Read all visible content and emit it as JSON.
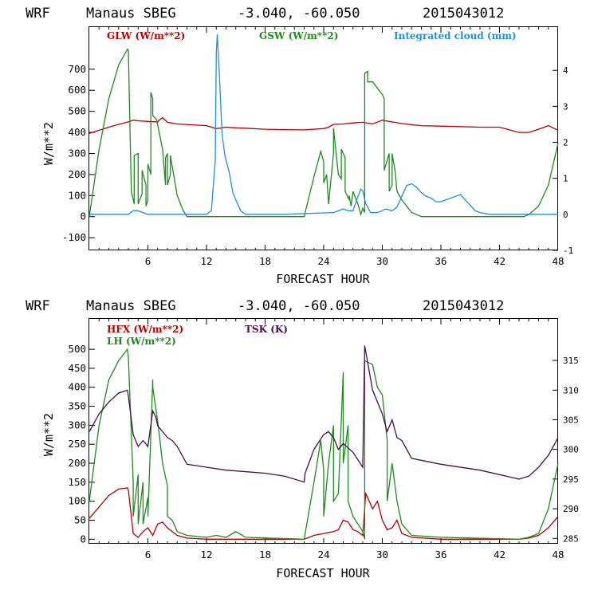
{
  "chart_data": [
    {
      "type": "line",
      "header": {
        "model": "WRF",
        "station": "Manaus SBEG",
        "coords": "-3.040, -60.050",
        "date": "2015043012"
      },
      "xlabel": "FORECAST HOUR",
      "ylabel": "W/m**2",
      "xlim": [
        0,
        48
      ],
      "ylim": [
        -160,
        900
      ],
      "xticks": [
        6,
        12,
        18,
        24,
        30,
        36,
        42,
        48
      ],
      "yticks": [
        -100,
        0,
        100,
        200,
        300,
        400,
        500,
        600,
        700
      ],
      "y2lim": [
        -1,
        5.2
      ],
      "y2ticks": [
        -1,
        0,
        1,
        2,
        3,
        4
      ],
      "legend": [
        {
          "label": "GLW (W/m**2)",
          "color": "#b40000"
        },
        {
          "label": "GSW (W/m**2)",
          "color": "#1e8a1e"
        },
        {
          "label": "Integrated cloud (mm)",
          "color": "#1f8fd8"
        }
      ],
      "series": [
        {
          "name": "GLW (W/m**2)",
          "color": "#b40000",
          "axis": "left",
          "x": [
            0,
            1,
            2,
            3,
            4,
            4.5,
            5,
            6,
            7,
            7.2,
            7.5,
            8,
            9,
            12,
            13,
            14,
            15,
            16,
            18,
            20,
            22,
            24,
            24.5,
            25,
            26,
            27,
            28,
            29,
            30,
            31,
            32,
            34,
            36,
            40,
            42,
            44,
            45,
            46,
            47,
            48
          ],
          "y": [
            395,
            410,
            425,
            438,
            450,
            458,
            455,
            452,
            450,
            460,
            470,
            448,
            440,
            432,
            418,
            425,
            422,
            420,
            415,
            413,
            412,
            418,
            425,
            438,
            440,
            445,
            448,
            440,
            458,
            450,
            442,
            432,
            430,
            425,
            425,
            400,
            400,
            415,
            432,
            410
          ]
        },
        {
          "name": "GSW (W/m**2)",
          "color": "#1e8a1e",
          "axis": "left",
          "x": [
            0,
            1,
            2,
            3,
            3.9,
            4,
            4.3,
            4.6,
            4.6,
            5,
            5,
            5.4,
            5.4,
            5.8,
            5.8,
            6,
            6,
            6.3,
            6.3,
            6.5,
            6.5,
            6.9,
            7.5,
            7.8,
            7.8,
            8,
            8,
            8.3,
            8.3,
            9,
            9.6,
            10,
            22,
            23,
            23.7,
            24,
            24,
            24.3,
            24.5,
            25,
            25,
            25.5,
            25.8,
            25.8,
            26.2,
            26.2,
            26.6,
            26.6,
            26.8,
            27,
            27.5,
            27.8,
            28,
            28.2,
            28.2,
            28.5,
            28.5,
            29,
            30,
            30.2,
            30.2,
            30.7,
            30.7,
            31,
            31,
            31.3,
            31.5,
            32,
            33,
            34,
            44.5,
            45,
            46,
            47,
            48
          ],
          "y": [
            0,
            320,
            560,
            720,
            795,
            790,
            120,
            60,
            290,
            300,
            60,
            110,
            220,
            150,
            50,
            80,
            250,
            200,
            590,
            560,
            480,
            460,
            320,
            150,
            280,
            300,
            150,
            200,
            290,
            100,
            30,
            0,
            0,
            190,
            310,
            260,
            160,
            200,
            60,
            300,
            420,
            200,
            180,
            320,
            280,
            120,
            80,
            100,
            50,
            120,
            60,
            10,
            40,
            20,
            680,
            690,
            640,
            640,
            580,
            560,
            220,
            300,
            120,
            150,
            300,
            220,
            120,
            80,
            20,
            0,
            0,
            10,
            50,
            150,
            350
          ]
        },
        {
          "name": "Integrated cloud (mm)",
          "color": "#1f8fd8",
          "axis": "right",
          "x": [
            0,
            4,
            4.5,
            5,
            5.5,
            6,
            12,
            12.5,
            12.9,
            13,
            13.1,
            13.3,
            13.6,
            13.9,
            14.3,
            14.7,
            15,
            15.5,
            16,
            17,
            20,
            25,
            26,
            26.5,
            27,
            27.5,
            27.8,
            28,
            28.3,
            28.8,
            29.5,
            30,
            30.3,
            31,
            31.5,
            32,
            32.5,
            33,
            33.5,
            34,
            34.5,
            35,
            35.5,
            36,
            37,
            37.5,
            38,
            38.5,
            39,
            39.5,
            40,
            41,
            44,
            48
          ],
          "y": [
            0,
            0,
            0.1,
            0.1,
            0.05,
            0,
            0,
            0.1,
            1.5,
            4.5,
            5.0,
            4.0,
            2.2,
            1.6,
            1.2,
            0.6,
            0.4,
            0.1,
            0,
            0,
            0,
            0.05,
            0.15,
            0.1,
            0.1,
            0.5,
            0.7,
            0.65,
            0.3,
            0.05,
            0.05,
            0.1,
            0.15,
            0.1,
            0.2,
            0.5,
            0.8,
            0.85,
            0.75,
            0.6,
            0.5,
            0.45,
            0.35,
            0.35,
            0.45,
            0.5,
            0.55,
            0.4,
            0.25,
            0.1,
            0.05,
            0,
            0,
            0
          ]
        }
      ]
    },
    {
      "type": "line",
      "header": {
        "model": "WRF",
        "station": "Manaus SBEG",
        "coords": "-3.040, -60.050",
        "date": "2015043012"
      },
      "xlabel": "FORECAST HOUR",
      "ylabel": "W/m**2",
      "xlim": [
        0,
        48
      ],
      "ylim": [
        -12,
        580
      ],
      "xticks": [
        6,
        12,
        18,
        24,
        30,
        36,
        42,
        48
      ],
      "yticks": [
        0,
        50,
        100,
        150,
        200,
        250,
        300,
        350,
        400,
        450,
        500
      ],
      "y2lim": [
        284.1,
        322
      ],
      "y2ticks": [
        285,
        290,
        295,
        300,
        305,
        310,
        315
      ],
      "legend": [
        {
          "label": "HFX (W/m**2)",
          "color": "#b40000"
        },
        {
          "label": "LH (W/m**2)",
          "color": "#1e8a1e"
        },
        {
          "label": "TSK (K)",
          "color": "#4b0a4b"
        }
      ],
      "series": [
        {
          "name": "HFX (W/m**2)",
          "color": "#b40000",
          "axis": "left",
          "x": [
            0,
            1,
            2,
            3,
            3.9,
            4,
            4.5,
            5,
            5.5,
            6,
            6.5,
            7,
            7.5,
            8,
            8.5,
            9,
            10,
            12,
            14,
            22,
            23,
            24,
            25,
            25.5,
            26,
            26.5,
            27,
            27.5,
            28,
            28.3,
            28.5,
            29,
            29.5,
            30,
            30.5,
            31,
            31.5,
            32,
            33,
            36,
            44,
            45,
            46,
            47,
            48
          ],
          "y": [
            55,
            85,
            115,
            132,
            135,
            130,
            15,
            5,
            20,
            30,
            10,
            40,
            45,
            30,
            20,
            10,
            3,
            0,
            0,
            0,
            10,
            15,
            20,
            25,
            50,
            45,
            25,
            20,
            10,
            120,
            110,
            80,
            100,
            50,
            25,
            30,
            50,
            15,
            5,
            0,
            0,
            3,
            10,
            30,
            60
          ]
        },
        {
          "name": "LH (W/m**2)",
          "color": "#1e8a1e",
          "axis": "left",
          "x": [
            0,
            1,
            2,
            3,
            3.9,
            4,
            4.5,
            4.5,
            5,
            5,
            5.5,
            5.5,
            6,
            6,
            6.5,
            6.5,
            7,
            7.5,
            8,
            8,
            8.5,
            9,
            10,
            12,
            13,
            14,
            15,
            16,
            22,
            23,
            23.7,
            24,
            24,
            24.5,
            25,
            25,
            25.5,
            26,
            26,
            26.5,
            26.5,
            27,
            27.5,
            28,
            28.2,
            28.2,
            29,
            29.5,
            30,
            30.5,
            30.5,
            31,
            31.5,
            32,
            33,
            36,
            44,
            45,
            46,
            47,
            48
          ],
          "y": [
            100,
            300,
            420,
            470,
            500,
            480,
            150,
            60,
            170,
            40,
            150,
            40,
            110,
            60,
            420,
            400,
            310,
            200,
            140,
            60,
            50,
            20,
            10,
            5,
            10,
            5,
            20,
            5,
            0,
            150,
            260,
            180,
            60,
            200,
            300,
            100,
            120,
            440,
            200,
            300,
            100,
            60,
            40,
            20,
            0,
            470,
            460,
            400,
            380,
            260,
            100,
            200,
            100,
            40,
            10,
            5,
            0,
            5,
            15,
            80,
            200
          ]
        },
        {
          "name": "TSK (K)",
          "color": "#4b0a4b",
          "axis": "right",
          "x": [
            0,
            1,
            2,
            3,
            3.9,
            4,
            4.5,
            5,
            5.5,
            6,
            6.5,
            6.8,
            7,
            7.5,
            8,
            8.5,
            9,
            10,
            12,
            14,
            18,
            20,
            22,
            22.1,
            23,
            24,
            24.5,
            25,
            25.5,
            26,
            27,
            28,
            28.2,
            29,
            30,
            30.5,
            31,
            31.5,
            32,
            33,
            36,
            40,
            44,
            45,
            46,
            47,
            48
          ],
          "y": [
            303,
            306,
            308,
            309.5,
            310,
            309,
            302.5,
            300.5,
            301.5,
            300.5,
            306.5,
            305.5,
            304,
            303,
            302,
            301.5,
            300.5,
            297.5,
            297,
            296.5,
            296,
            295.5,
            294.5,
            296,
            300,
            302.5,
            303,
            302,
            300,
            301,
            299.5,
            297,
            317.5,
            310,
            306,
            303,
            305,
            302,
            301.5,
            298.5,
            297.5,
            296.5,
            295,
            295.5,
            297,
            299,
            302
          ]
        }
      ]
    }
  ]
}
